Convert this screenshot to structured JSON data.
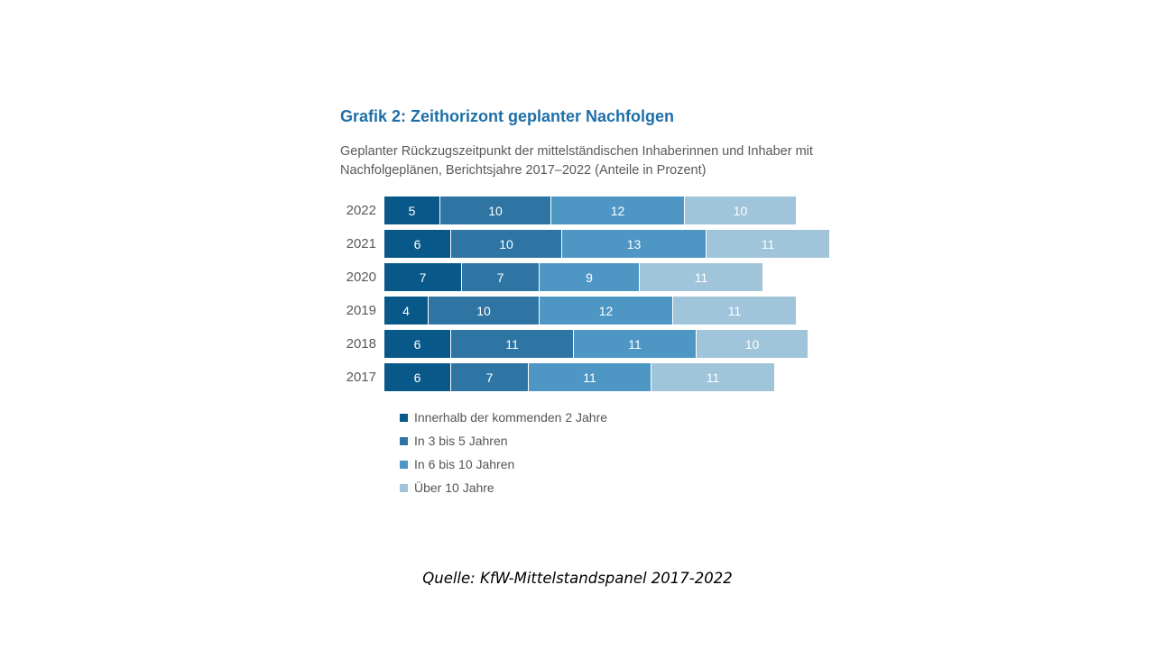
{
  "chart": {
    "title": "Grafik 2: Zeithorizont geplanter Nachfolgen",
    "subtitle": "Geplanter Rückzugszeitpunkt der mittelständischen Inhaberinnen und Inhaber mit Nachfolgeplänen, Berichtsjahre 2017–2022 (Anteile in Prozent)"
  },
  "source": "Quelle: KfW-Mittelstandspanel 2017-2022",
  "chart_data": {
    "type": "bar",
    "orientation": "horizontal-stacked",
    "title": "Grafik 2: Zeithorizont geplanter Nachfolgen",
    "subtitle": "Geplanter Rückzugszeitpunkt der mittelständischen Inhaberinnen und Inhaber mit Nachfolgeplänen, Berichtsjahre 2017–2022 (Anteile in Prozent)",
    "unit": "percent",
    "value_labels": true,
    "legend_position": "bottom",
    "categories": [
      "2022",
      "2021",
      "2020",
      "2019",
      "2018",
      "2017"
    ],
    "series": [
      {
        "name": "Innerhalb der kommenden 2 Jahre",
        "color": "#09588a",
        "values": [
          5,
          6,
          7,
          4,
          6,
          6
        ]
      },
      {
        "name": "In 3 bis 5 Jahren",
        "color": "#2e75a4",
        "values": [
          10,
          10,
          7,
          10,
          11,
          7
        ]
      },
      {
        "name": "In 6 bis 10 Jahren",
        "color": "#4e97c5",
        "values": [
          12,
          13,
          9,
          12,
          11,
          11
        ]
      },
      {
        "name": "Über 10 Jahre",
        "color": "#a0c5db",
        "values": [
          10,
          11,
          11,
          11,
          10,
          11
        ]
      }
    ],
    "totals": [
      37,
      40,
      34,
      37,
      38,
      35
    ]
  }
}
